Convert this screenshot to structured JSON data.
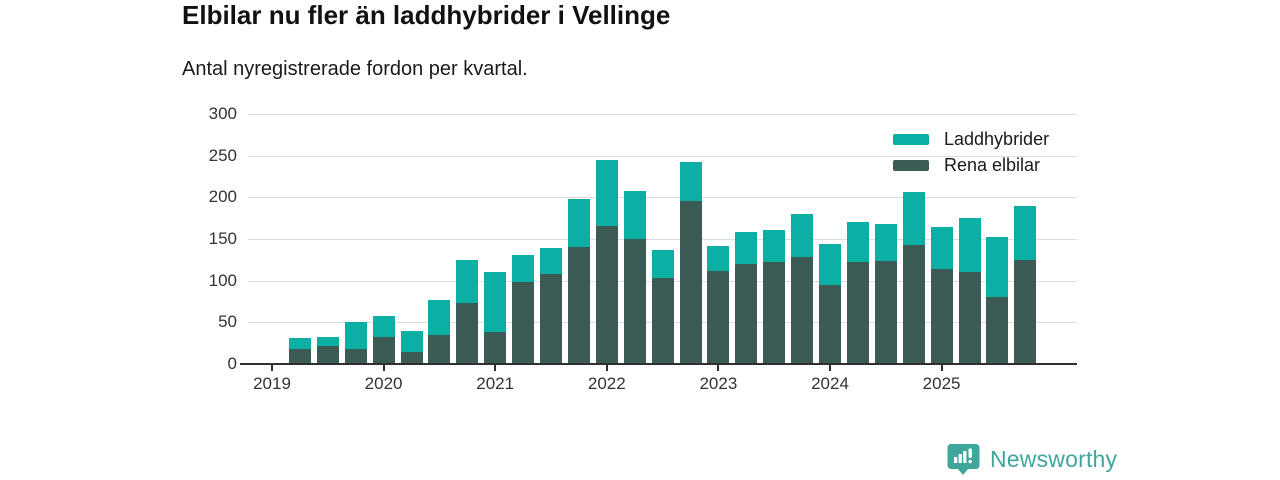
{
  "header": {
    "title": "Elbilar nu fler än laddhybrider i Vellinge",
    "subtitle": "Antal nyregistrerade fordon per kvartal."
  },
  "branding": {
    "name": "Newsworthy",
    "color": "#3fa69b"
  },
  "chart_data": {
    "type": "bar",
    "stacked": true,
    "title": "Elbilar nu fler än laddhybrider i Vellinge",
    "subtitle": "Antal nyregistrerade fordon per kvartal.",
    "grid": true,
    "legend_position": "top-right",
    "ylim": [
      0,
      300
    ],
    "yticks": [
      0,
      50,
      100,
      150,
      200,
      250,
      300
    ],
    "categories": [
      "2019 Q1",
      "2019 Q2",
      "2019 Q3",
      "2019 Q4",
      "2020 Q1",
      "2020 Q2",
      "2020 Q3",
      "2020 Q4",
      "2021 Q1",
      "2021 Q2",
      "2021 Q3",
      "2021 Q4",
      "2022 Q1",
      "2022 Q2",
      "2022 Q3",
      "2022 Q4",
      "2023 Q1",
      "2023 Q2",
      "2023 Q3",
      "2023 Q4",
      "2024 Q1",
      "2024 Q2",
      "2024 Q3",
      "2024 Q4",
      "2025 Q1",
      "2025 Q2",
      "2025 Q3",
      "2025 Q4"
    ],
    "x_ticks": [
      {
        "index": 0,
        "label": "2019"
      },
      {
        "index": 4,
        "label": "2020"
      },
      {
        "index": 8,
        "label": "2021"
      },
      {
        "index": 12,
        "label": "2022"
      },
      {
        "index": 16,
        "label": "2023"
      },
      {
        "index": 20,
        "label": "2024"
      },
      {
        "index": 24,
        "label": "2025"
      }
    ],
    "series": [
      {
        "name": "Rena elbilar",
        "color": "#3d5b55",
        "values": [
          0,
          18,
          22,
          18,
          33,
          15,
          35,
          73,
          39,
          98,
          108,
          140,
          166,
          150,
          103,
          196,
          112,
          120,
          122,
          128,
          95,
          123,
          124,
          143,
          114,
          110,
          80,
          125
        ]
      },
      {
        "name": "Laddhybrider",
        "color": "#0bafa4",
        "values": [
          0,
          13,
          10,
          32,
          25,
          25,
          42,
          52,
          71,
          33,
          31,
          58,
          79,
          58,
          34,
          46,
          30,
          38,
          39,
          52,
          49,
          47,
          44,
          63,
          50,
          65,
          73,
          65
        ]
      }
    ],
    "legend": [
      {
        "label": "Laddhybrider",
        "color": "#0bafa4"
      },
      {
        "label": "Rena elbilar",
        "color": "#3d5b55"
      }
    ]
  }
}
